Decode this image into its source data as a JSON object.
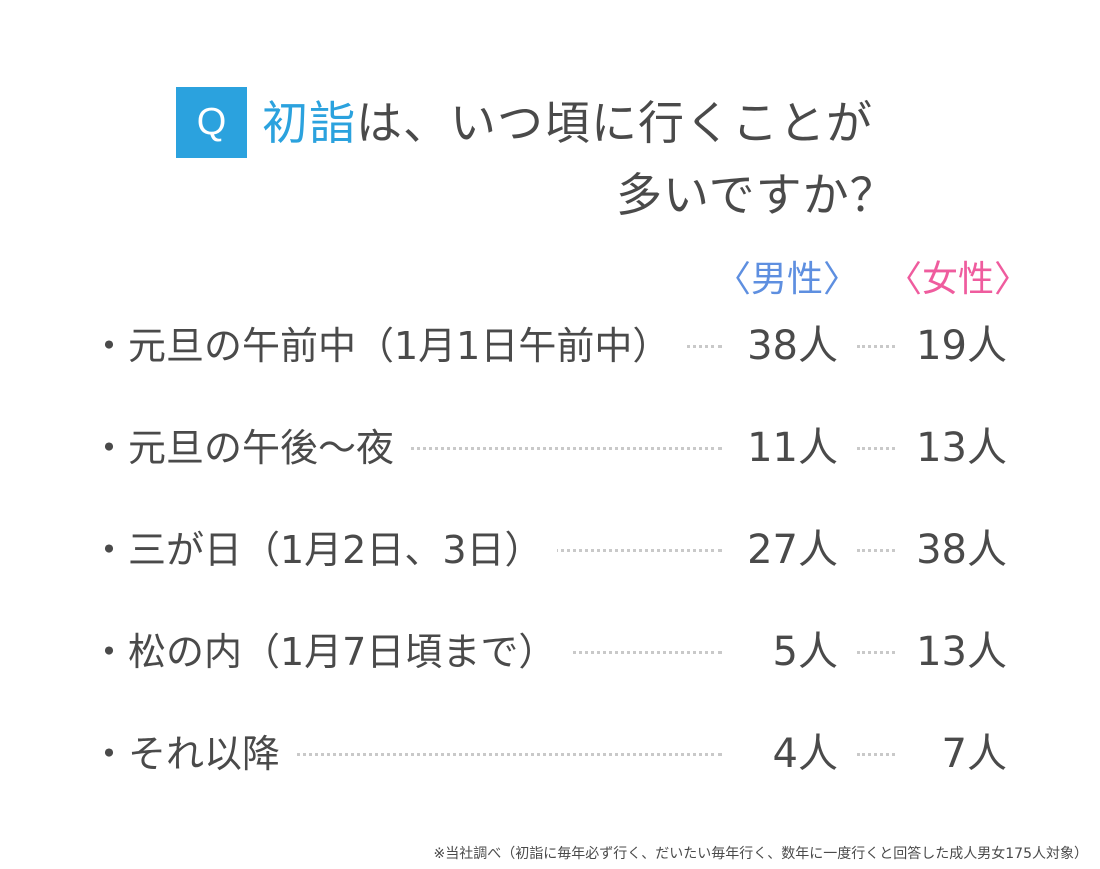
{
  "question": {
    "badge": "Q",
    "title_accent": "初詣",
    "title_line1_rest": "は、いつ頃に行くことが",
    "title_line2": "多いですか？"
  },
  "headers": {
    "male": "〈男性〉",
    "female": "〈女性〉"
  },
  "colors": {
    "accent_blue": "#2ba2de",
    "male": "#5e8fe0",
    "female": "#ef5c9e",
    "text": "#4a4a4a"
  },
  "chart_data": {
    "type": "table",
    "columns": [
      "男性",
      "女性"
    ],
    "rows": [
      {
        "label": "・元旦の午前中（1月1日午前中）",
        "male": "38人",
        "female": "19人"
      },
      {
        "label": "・元旦の午後〜夜",
        "male": "11人",
        "female": "13人"
      },
      {
        "label": "・三が日（1月2日、3日）",
        "male": "27人",
        "female": "38人"
      },
      {
        "label": "・松の内（1月7日頃まで）",
        "male": "5人",
        "female": "13人"
      },
      {
        "label": "・それ以降",
        "male": "4人",
        "female": "7人"
      }
    ]
  },
  "footnote": "※当社調べ（初詣に毎年必ず行く、だいたい毎年行く、数年に一度行くと回答した成人男女175人対象）"
}
